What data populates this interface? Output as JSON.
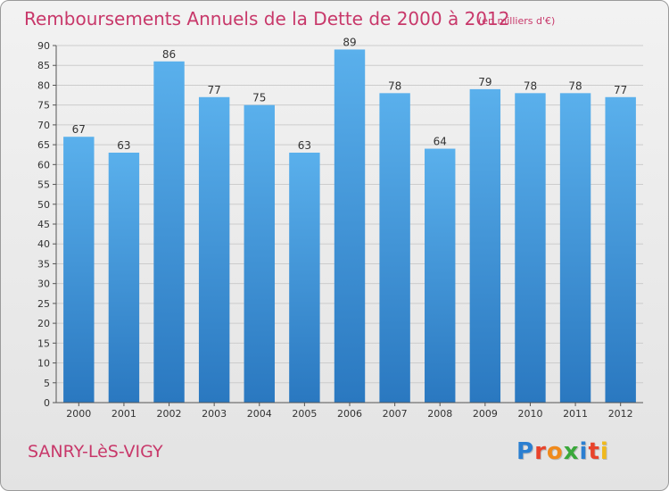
{
  "header": {
    "title": "Remboursements Annuels de la Dette de 2000 à 2012",
    "subtitle": "(en milliers d'€)"
  },
  "footer": {
    "commune": "SANRY-LèS-VIGY",
    "brand_letters": [
      "P",
      "r",
      "o",
      "x",
      "i",
      "t",
      "i"
    ],
    "brand_colors": [
      "#2b7fd1",
      "#e8432b",
      "#f08a1c",
      "#3aa83a",
      "#2b7fd1",
      "#e8432b",
      "#f0b91c"
    ]
  },
  "chart_data": {
    "type": "bar",
    "title": "Remboursements Annuels de la Dette de 2000 à 2012",
    "categories": [
      "2000",
      "2001",
      "2002",
      "2003",
      "2004",
      "2005",
      "2006",
      "2007",
      "2008",
      "2009",
      "2010",
      "2011",
      "2012"
    ],
    "values": [
      67,
      63,
      86,
      77,
      75,
      63,
      89,
      78,
      64,
      79,
      78,
      78,
      77
    ],
    "ylim": [
      0,
      90
    ],
    "yticks": [
      0,
      5,
      10,
      15,
      20,
      25,
      30,
      35,
      40,
      45,
      50,
      55,
      60,
      65,
      70,
      75,
      80,
      85,
      90
    ],
    "grid": true,
    "colors": {
      "bar_top": "#5ab0ec",
      "bar_bottom": "#2a78c0",
      "grid": "#cccccc",
      "axis": "#555555",
      "text": "#333333"
    }
  }
}
